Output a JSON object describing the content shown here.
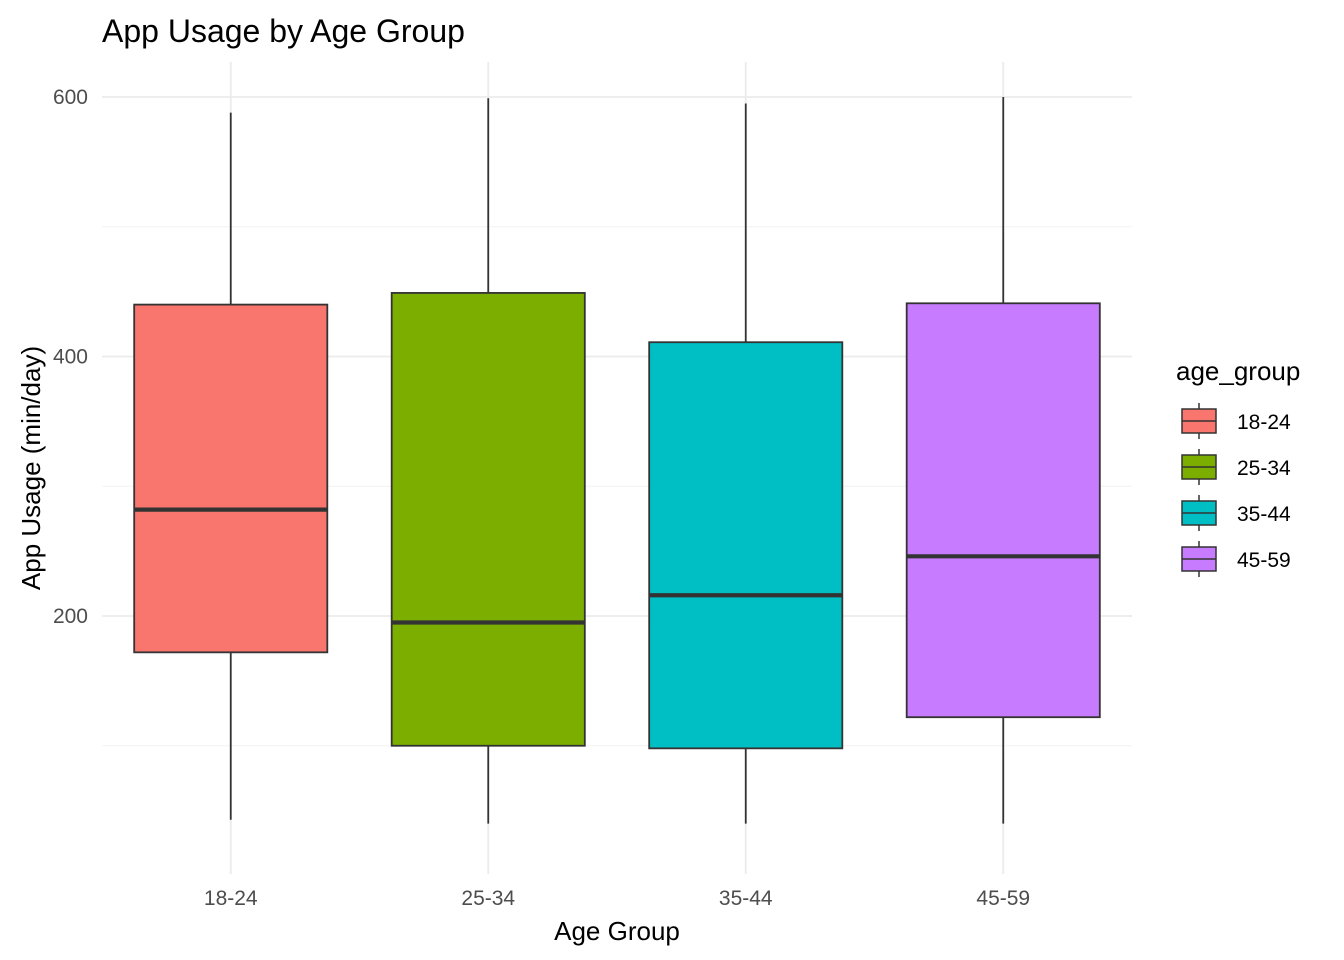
{
  "chart_data": {
    "type": "boxplot",
    "title": "App Usage by Age Group",
    "xlabel": "Age Group",
    "ylabel": "App Usage (min/day)",
    "ylim": [
      20,
      620
    ],
    "yticks": [
      200,
      400,
      600
    ],
    "ytick_labels": [
      "200",
      "400",
      "600"
    ],
    "grid": true,
    "legend": {
      "title": "age_group",
      "position": "right"
    },
    "categories": [
      "18-24",
      "25-34",
      "35-44",
      "45-59"
    ],
    "series": [
      {
        "name": "18-24",
        "color": "#F8766D",
        "whisker_low": 43,
        "q1": 172,
        "median": 282,
        "q3": 440,
        "whisker_high": 588
      },
      {
        "name": "25-34",
        "color": "#7CAE00",
        "whisker_low": 40,
        "q1": 100,
        "median": 195,
        "q3": 449,
        "whisker_high": 599
      },
      {
        "name": "35-44",
        "color": "#00BFC4",
        "whisker_low": 40,
        "q1": 98,
        "median": 216,
        "q3": 411,
        "whisker_high": 595
      },
      {
        "name": "45-59",
        "color": "#C77CFF",
        "whisker_low": 40,
        "q1": 122,
        "median": 246,
        "q3": 441,
        "whisker_high": 600
      }
    ]
  }
}
